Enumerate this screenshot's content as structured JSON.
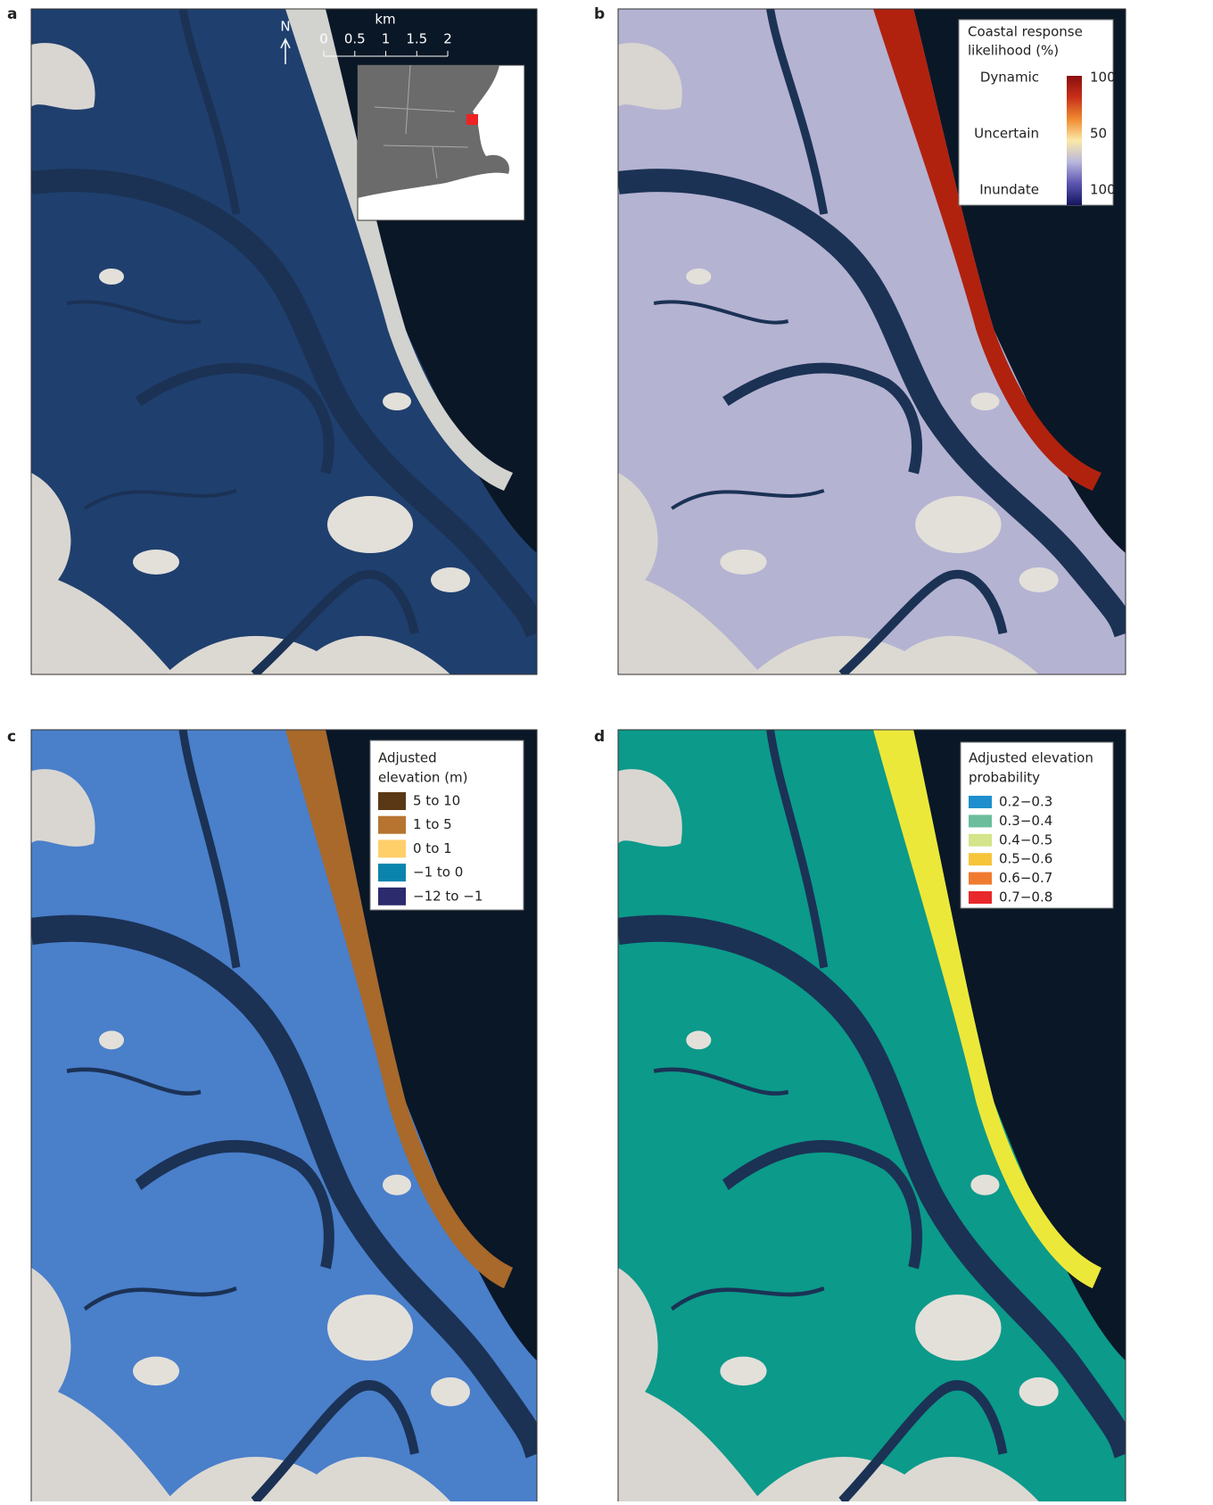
{
  "panels": [
    {
      "label": "a",
      "north": "N",
      "scale": {
        "unit": "km",
        "ticks": [
          0,
          0.5,
          1,
          1.5,
          2
        ]
      }
    },
    {
      "label": "b",
      "legend": {
        "title": [
          "Coastal response",
          "likelihood (%)"
        ],
        "colorbar": [
          "#8b0e0e",
          "#c8301a",
          "#f08a30",
          "#fbe9a8",
          "#b9b6dd",
          "#5b55b0",
          "#14155e"
        ],
        "labels": [
          {
            "name": "Dynamic",
            "value": "100"
          },
          {
            "name": "Uncertain",
            "value": "50"
          },
          {
            "name": "Inundate",
            "value": "100"
          }
        ]
      }
    },
    {
      "label": "c",
      "legend": {
        "title": [
          "Adjusted",
          "elevation (m)"
        ],
        "items": [
          {
            "label": "5 to 10",
            "color": "#5a3815"
          },
          {
            "label": "1 to 5",
            "color": "#b77430"
          },
          {
            "label": "0 to 1",
            "color": "#ffcf6a"
          },
          {
            "label": "−1 to 0",
            "color": "#0b84ad"
          },
          {
            "label": "−12 to −1",
            "color": "#2b2b6e"
          }
        ]
      }
    },
    {
      "label": "d",
      "legend": {
        "title": [
          "Adjusted elevation",
          "probability"
        ],
        "items": [
          {
            "label": "0.2−0.3",
            "color": "#1c8fcc"
          },
          {
            "label": "0.3−0.4",
            "color": "#6bbd9c"
          },
          {
            "label": "0.4−0.5",
            "color": "#d3e48a"
          },
          {
            "label": "0.5−0.6",
            "color": "#f7c53a"
          },
          {
            "label": "0.6−0.7",
            "color": "#f07b30"
          },
          {
            "label": "0.7−0.8",
            "color": "#e8282a"
          }
        ]
      }
    }
  ]
}
